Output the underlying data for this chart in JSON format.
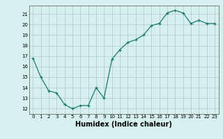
{
  "x": [
    0,
    1,
    2,
    3,
    4,
    5,
    6,
    7,
    8,
    9,
    10,
    11,
    12,
    13,
    14,
    15,
    16,
    17,
    18,
    19,
    20,
    21,
    22,
    23
  ],
  "y": [
    16.8,
    15.0,
    13.7,
    13.5,
    12.4,
    12.0,
    12.3,
    12.3,
    14.0,
    13.0,
    16.7,
    17.6,
    18.3,
    18.55,
    19.0,
    19.9,
    20.1,
    21.1,
    21.35,
    21.1,
    20.1,
    20.4,
    20.1,
    20.1
  ],
  "ylim": [
    11.5,
    21.8
  ],
  "xlim": [
    -0.5,
    23.5
  ],
  "yticks": [
    12,
    13,
    14,
    15,
    16,
    17,
    18,
    19,
    20,
    21
  ],
  "xticks": [
    0,
    1,
    2,
    3,
    4,
    5,
    6,
    7,
    8,
    9,
    10,
    11,
    12,
    13,
    14,
    15,
    16,
    17,
    18,
    19,
    20,
    21,
    22,
    23
  ],
  "xlabel": "Humidex (Indice chaleur)",
  "line_color": "#1a7a6e",
  "marker": "+",
  "marker_size": 3.5,
  "bg_color": "#d6f0f0",
  "grid_color": "#b0c8c8",
  "tick_fontsize": 5.0,
  "xlabel_fontsize": 7.0
}
